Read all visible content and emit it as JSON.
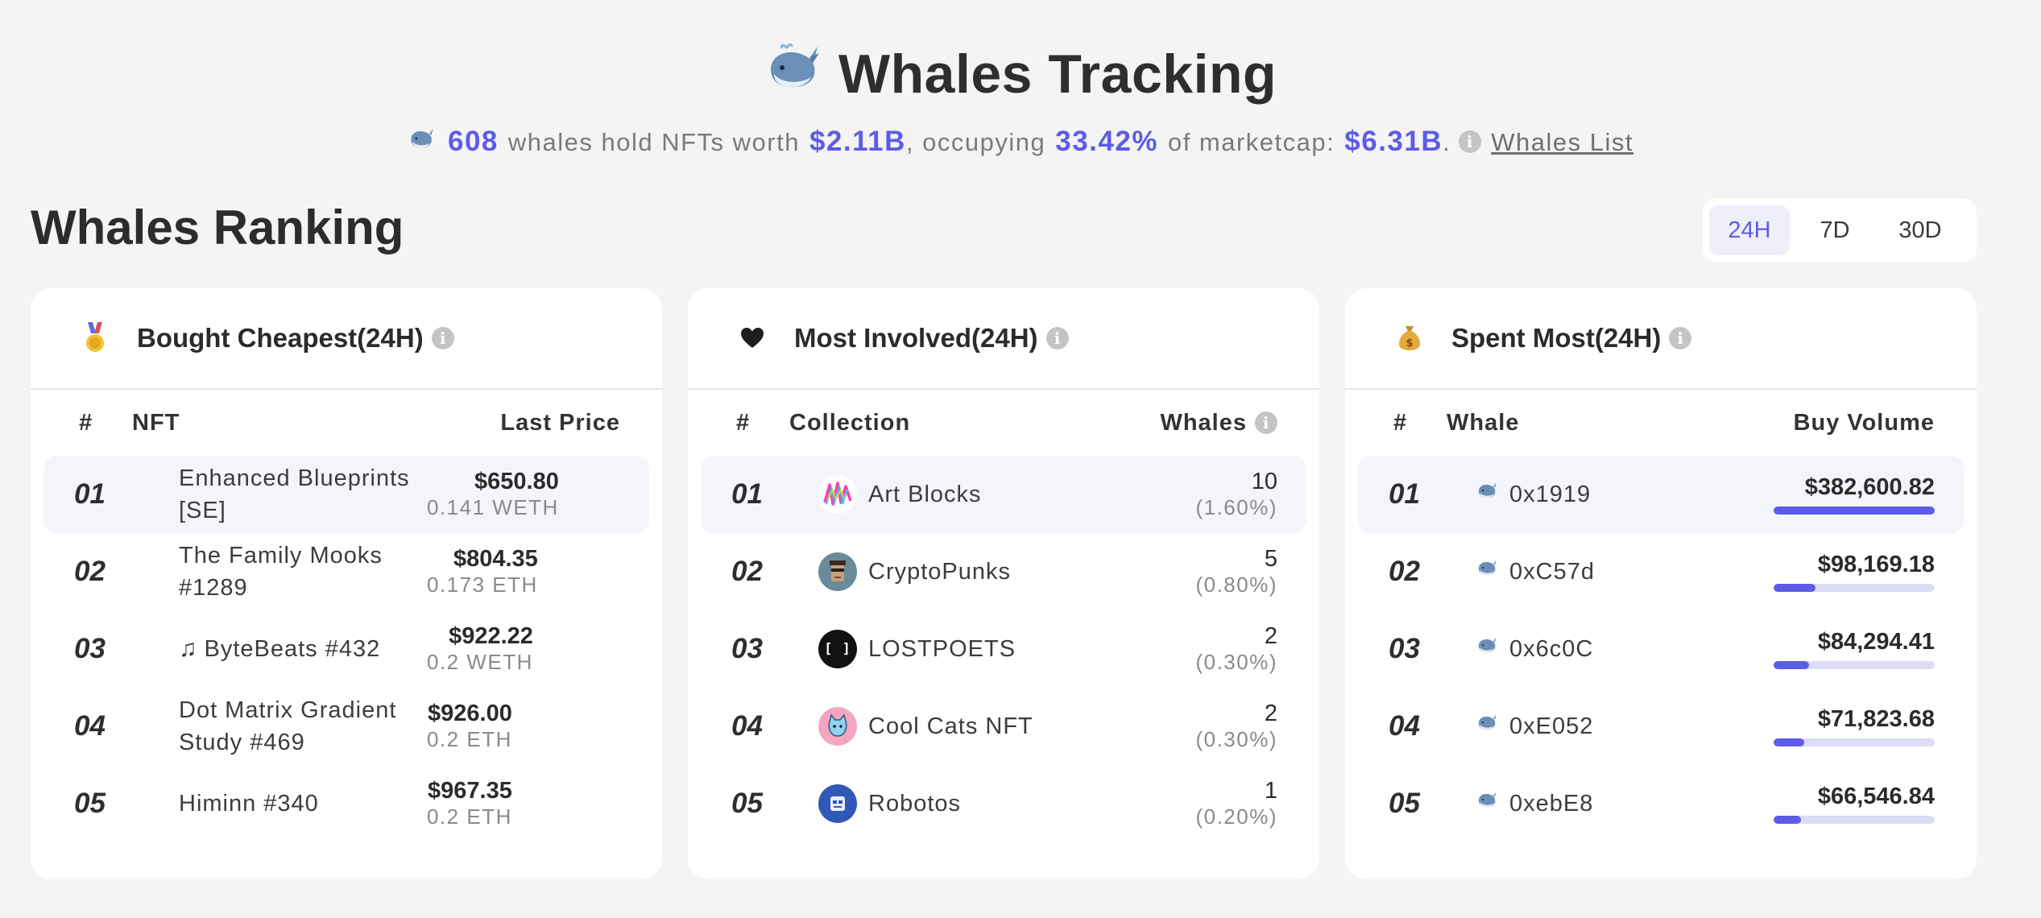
{
  "header": {
    "title": "Whales Tracking",
    "whale_count": "608",
    "text_hold": "whales hold NFTs worth",
    "hold_value": "$2.11B",
    "text_occupying": ", occupying",
    "percent": "33.42%",
    "text_marketcap": "of marketcap:",
    "marketcap": "$6.31B",
    "period": ".",
    "whales_list_link": "Whales List"
  },
  "section_title": "Whales Ranking",
  "range_tabs": [
    "24H",
    "7D",
    "30D"
  ],
  "active_range": "24H",
  "colors": {
    "accent": "#5d5ce6",
    "bar_track": "#dcdcf6",
    "row_highlight": "#f4f5fb"
  },
  "cards": {
    "bought_cheapest": {
      "icon": "medal-icon",
      "title": "Bought Cheapest(24H)",
      "col_idx": "#",
      "col_name": "NFT",
      "col_value": "Last Price",
      "rows": [
        {
          "idx": "01",
          "name": "Enhanced Blueprints [SE]",
          "price": "$650.80",
          "sub": "0.141 WETH"
        },
        {
          "idx": "02",
          "name": "The Family Mooks #1289",
          "price": "$804.35",
          "sub": "0.173 ETH"
        },
        {
          "idx": "03",
          "name": "ByteBeats #432",
          "price": "$922.22",
          "sub": "0.2 WETH"
        },
        {
          "idx": "04",
          "name": "Dot Matrix Gradient Study #469",
          "price": "$926.00",
          "sub": "0.2 ETH"
        },
        {
          "idx": "05",
          "name": "Himinn #340",
          "price": "$967.35",
          "sub": "0.2 ETH"
        }
      ]
    },
    "most_involved": {
      "icon": "heart-icon",
      "title": "Most Involved(24H)",
      "col_idx": "#",
      "col_name": "Collection",
      "col_value": "Whales",
      "rows": [
        {
          "idx": "01",
          "name": "Art Blocks",
          "count": "10",
          "pct": "(1.60%)"
        },
        {
          "idx": "02",
          "name": "CryptoPunks",
          "count": "5",
          "pct": "(0.80%)"
        },
        {
          "idx": "03",
          "name": "LOSTPOETS",
          "count": "2",
          "pct": "(0.30%)"
        },
        {
          "idx": "04",
          "name": "Cool Cats NFT",
          "count": "2",
          "pct": "(0.30%)"
        },
        {
          "idx": "05",
          "name": "Robotos",
          "count": "1",
          "pct": "(0.20%)"
        }
      ]
    },
    "spent_most": {
      "icon": "money-bag-icon",
      "title": "Spent Most(24H)",
      "col_idx": "#",
      "col_name": "Whale",
      "col_value": "Buy Volume",
      "rows": [
        {
          "idx": "01",
          "name": "0x1919",
          "volume": "$382,600.82",
          "share": 1.0
        },
        {
          "idx": "02",
          "name": "0xC57d",
          "volume": "$98,169.18",
          "share": 0.26
        },
        {
          "idx": "03",
          "name": "0x6c0C",
          "volume": "$84,294.41",
          "share": 0.22
        },
        {
          "idx": "04",
          "name": "0xE052",
          "volume": "$71,823.68",
          "share": 0.19
        },
        {
          "idx": "05",
          "name": "0xebE8",
          "volume": "$66,546.84",
          "share": 0.17
        }
      ]
    }
  }
}
